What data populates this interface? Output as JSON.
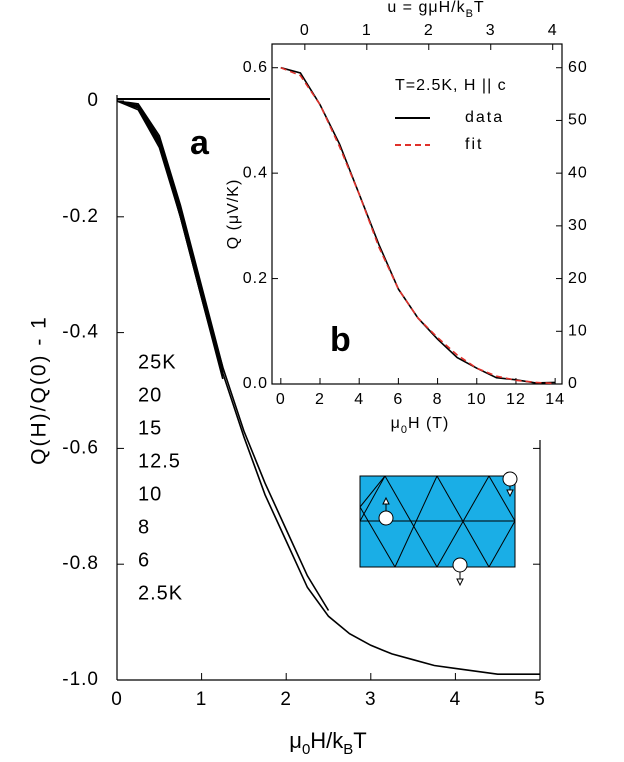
{
  "chart_data": [
    {
      "type": "line",
      "panel": "a",
      "x_label": [
        "μ",
        "0",
        "H/k",
        "B",
        "T"
      ],
      "y_label": "Q(H)/Q(0) - 1",
      "xlim": [
        0,
        5
      ],
      "xticks": [
        0,
        1,
        2,
        3,
        4,
        5
      ],
      "ylim": [
        -1.0,
        0
      ],
      "yticks": [
        0,
        -0.2,
        -0.4,
        -0.6,
        -0.8,
        {
          "value": -1.0,
          "label": "-1.0"
        }
      ],
      "x": [
        0,
        0.25,
        0.5,
        0.75,
        1.0,
        1.25,
        1.5,
        1.75,
        2.0,
        2.25,
        2.5,
        2.75,
        3.0,
        3.25,
        3.5,
        3.75,
        4.0,
        4.25,
        4.5,
        4.75,
        5.0
      ],
      "series": [
        {
          "name": "25K",
          "color": "#000000",
          "values": [
            0,
            -0.005,
            -0.06,
            -0.18,
            -0.32,
            -0.46,
            null,
            null,
            null,
            null,
            null,
            null,
            null,
            null,
            null,
            null,
            null,
            null,
            null,
            null,
            null
          ]
        },
        {
          "name": "20",
          "color": "#000000",
          "values": [
            0,
            -0.008,
            -0.065,
            -0.185,
            -0.325,
            -0.465,
            null,
            null,
            null,
            null,
            null,
            null,
            null,
            null,
            null,
            null,
            null,
            null,
            null,
            null,
            null
          ]
        },
        {
          "name": "15",
          "color": "#000000",
          "values": [
            0,
            -0.01,
            -0.07,
            -0.19,
            -0.33,
            -0.47,
            null,
            null,
            null,
            null,
            null,
            null,
            null,
            null,
            null,
            null,
            null,
            null,
            null,
            null,
            null
          ]
        },
        {
          "name": "12.5",
          "color": "#000000",
          "values": [
            0,
            -0.012,
            -0.075,
            -0.195,
            -0.335,
            -0.47,
            null,
            null,
            null,
            null,
            null,
            null,
            null,
            null,
            null,
            null,
            null,
            null,
            null,
            null,
            null
          ]
        },
        {
          "name": "10",
          "color": "#000000",
          "values": [
            0,
            -0.01,
            -0.072,
            -0.2,
            -0.34,
            -0.475,
            null,
            null,
            null,
            null,
            null,
            null,
            null,
            null,
            null,
            null,
            null,
            null,
            null,
            null,
            null
          ]
        },
        {
          "name": "8",
          "color": "#000000",
          "values": [
            0,
            -0.015,
            -0.08,
            -0.2,
            -0.34,
            -0.48,
            null,
            null,
            null,
            null,
            null,
            null,
            null,
            null,
            null,
            null,
            null,
            null,
            null,
            null,
            null
          ]
        },
        {
          "name": "6",
          "color": "#000000",
          "values": [
            0,
            -0.01,
            -0.07,
            -0.2,
            -0.33,
            -0.46,
            -0.57,
            -0.66,
            -0.74,
            -0.82,
            -0.88,
            null,
            null,
            null,
            null,
            null,
            null,
            null,
            null,
            null,
            null
          ]
        },
        {
          "name": "2.5K",
          "color": "#000000",
          "values": [
            0,
            -0.01,
            -0.07,
            -0.19,
            -0.33,
            -0.47,
            -0.58,
            -0.68,
            -0.76,
            -0.84,
            -0.89,
            -0.92,
            -0.94,
            -0.955,
            -0.965,
            -0.975,
            -0.98,
            -0.985,
            -0.99,
            -0.99,
            -0.99
          ]
        }
      ]
    },
    {
      "type": "line",
      "panel": "b",
      "x_label": [
        "μ",
        "0",
        "H  (T)"
      ],
      "x2_label": [
        "u = gμH/k",
        "B",
        "T"
      ],
      "y_label": "Q  (μV/K)",
      "annotation": "T=2.5K, H || c",
      "xlim": [
        -0.45,
        14.35
      ],
      "xticks": [
        0,
        2,
        4,
        6,
        8,
        10,
        12,
        14
      ],
      "x2lim": [
        -0.53,
        4.15
      ],
      "x2ticks": [
        0,
        1,
        2,
        3,
        4
      ],
      "ylim": [
        0,
        0.645
      ],
      "yticks": [
        {
          "value": 0,
          "label": "0.0"
        },
        0.2,
        0.4,
        0.6
      ],
      "y2lim": [
        0,
        64.5
      ],
      "y2ticks": [
        0,
        10,
        20,
        30,
        40,
        50,
        60
      ],
      "x": [
        0,
        1,
        2,
        3,
        4,
        5,
        6,
        7,
        8,
        9,
        10,
        11,
        12,
        13,
        14
      ],
      "series": [
        {
          "name": "data",
          "color": "#000000",
          "dashed": false,
          "values": [
            0.6,
            0.59,
            0.53,
            0.455,
            0.36,
            0.265,
            0.18,
            0.125,
            0.085,
            0.05,
            0.03,
            0.012,
            0.008,
            0.002,
            0.003
          ]
        },
        {
          "name": "fit",
          "color": "#e0302a",
          "dashed": true,
          "values": [
            0.6,
            0.585,
            0.53,
            0.45,
            0.36,
            0.26,
            0.18,
            0.125,
            0.088,
            0.055,
            0.03,
            0.015,
            0.007,
            0.003,
            0.001
          ]
        }
      ]
    }
  ]
}
